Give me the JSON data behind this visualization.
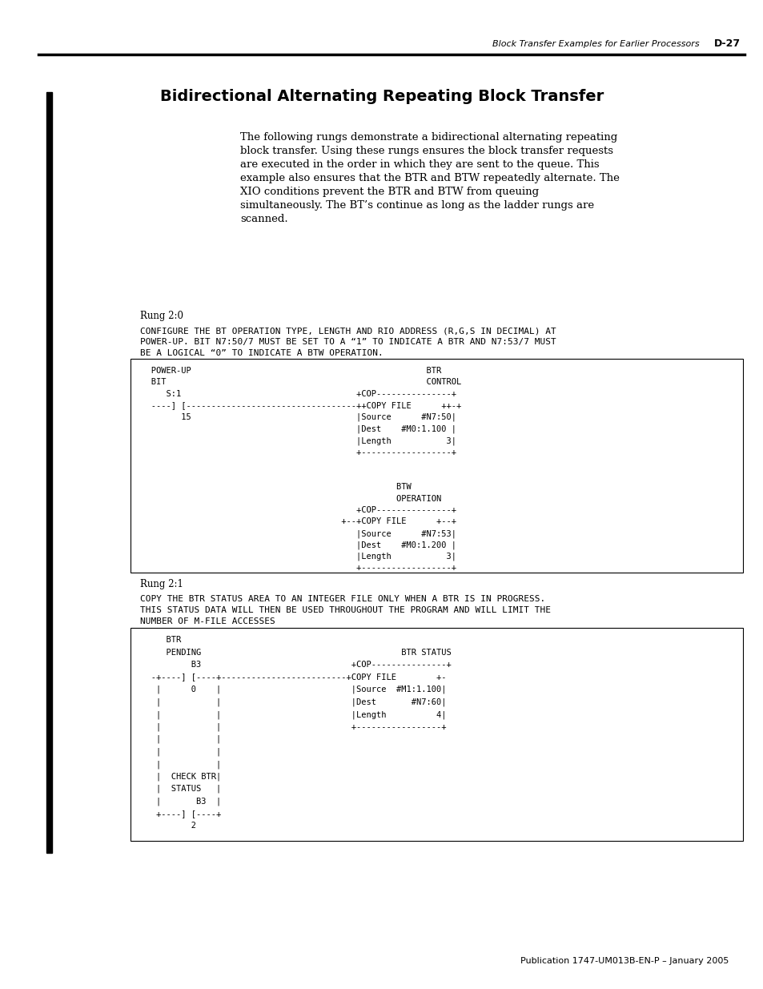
{
  "page_header_left": "Block Transfer Examples for Earlier Processors",
  "page_header_right": "D-27",
  "title": "Bidirectional Alternating Repeating Block Transfer",
  "body_text": "The following rungs demonstrate a bidirectional alternating repeating\nblock transfer. Using these rungs ensures the block transfer requests\nare executed in the order in which they are sent to the queue. This\nexample also ensures that the BTR and BTW repeatedly alternate. The\nXIO conditions prevent the BTR and BTW from queuing\nsimultaneously. The BT’s continue as long as the ladder rungs are\nscanned.",
  "rung20_label": "Rung 2:0",
  "rung20_comment": "CONFIGURE THE BT OPERATION TYPE, LENGTH AND RIO ADDRESS (R,G,S IN DECIMAL) AT\nPOWER-UP. BIT N7:50/7 MUST BE SET TO A “1” TO INDICATE A BTR AND N7:53/7 MUST\nBE A LOGICAL “0” TO INDICATE A BTW OPERATION.",
  "rung20_diagram": [
    "   POWER-UP                                           BTR",
    "   BIT                                                CONTROL",
    "      S:1                              +COP---------------+",
    "   ----] [-----------------------------++COPY FILE      ++-+",
    "         15                            |Source      #N7:50|",
    "                                       |Dest    #M0:1.100 |",
    "                                       |Length           3|",
    "                                       +------------------+",
    "",
    "",
    "                                               BTW",
    "                                               OPERATION",
    "                                       +COP---------------+",
    "                                    +--+COPY FILE      +--+",
    "                                       |Source      #N7:53|",
    "                                       |Dest    #M0:1.200 |",
    "                                       |Length           3|",
    "                                       +------------------+"
  ],
  "rung21_label": "Rung 2:1",
  "rung21_comment": "COPY THE BTR STATUS AREA TO AN INTEGER FILE ONLY WHEN A BTR IS IN PROGRESS.\nTHIS STATUS DATA WILL THEN BE USED THROUGHOUT THE PROGRAM AND WILL LIMIT THE\nNUMBER OF M-FILE ACCESSES",
  "rung21_diagram": [
    "      BTR",
    "      PENDING                                    BTR STATUS",
    "           B3                          +COP---------------+",
    "   -+----] [----+---------------------+COPY FILE        +-",
    "    |      0    |                      |Source  #M1:1.100|",
    "    |           |                      |Dest       #N7:60|",
    "    |           |                      |Length          4|",
    "    |           |                      +-----------------+",
    "    |           |",
    "    |           |",
    "    |           |",
    "    |  CHECK BTR|",
    "    |  STATUS   |",
    "    |       B3  |",
    "    +----] [----+",
    "           2"
  ],
  "footer": "Publication 1747-UM013B-EN-P – January 2005",
  "background_color": "#ffffff",
  "text_color": "#000000"
}
